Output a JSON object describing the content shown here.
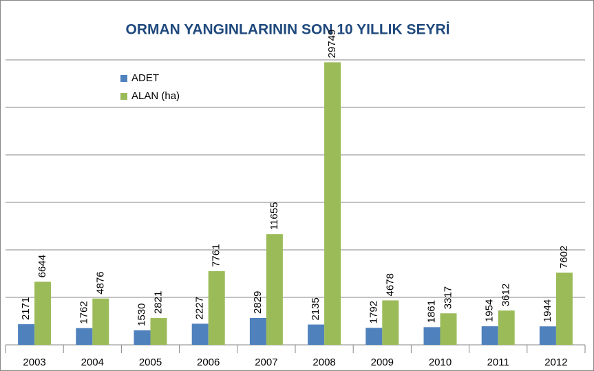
{
  "chart_data": {
    "type": "bar",
    "title": "ORMAN YANGINLARININ SON 10  YILLIK SEYRİ",
    "categories": [
      "2003",
      "2004",
      "2005",
      "2006",
      "2007",
      "2008",
      "2009",
      "2010",
      "2011",
      "2012"
    ],
    "series": [
      {
        "name": "ADET",
        "color": "#4f81bd",
        "values": [
          2171,
          1762,
          1530,
          2227,
          2829,
          2135,
          1792,
          1861,
          1954,
          1944
        ]
      },
      {
        "name": "ALAN (ha)",
        "color": "#9bbb59",
        "values": [
          6644,
          4876,
          2821,
          7761,
          11655,
          29749,
          4678,
          3317,
          3612,
          7602
        ]
      }
    ],
    "ylim": [
      0,
      30000
    ],
    "yticks": [
      0,
      5000,
      10000,
      15000,
      20000,
      25000,
      30000
    ],
    "grid": true,
    "legend": "top-left"
  }
}
